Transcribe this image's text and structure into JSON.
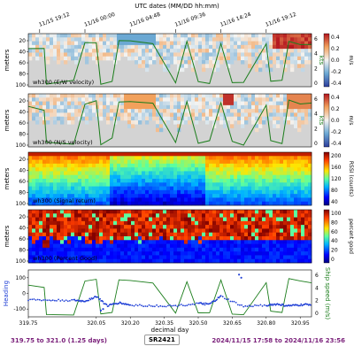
{
  "top_axis": {
    "label": "UTC dates (MM/DD hh:mm)",
    "ticks": [
      {
        "label": "11/15 19:12",
        "day": 319.8
      },
      {
        "label": "11/16 00:00",
        "day": 320.0
      },
      {
        "label": "11/16 04:48",
        "day": 320.2
      },
      {
        "label": "11/16 09:36",
        "day": 320.4
      },
      {
        "label": "11/16 14:24",
        "day": 320.6
      },
      {
        "label": "11/16 19:12",
        "day": 320.8
      }
    ]
  },
  "panels": [
    {
      "id": "uvel",
      "title": "wh300 (E/W velocity)",
      "ylabel": "meters",
      "right_ylabel": "m/s",
      "colormap": "diverging",
      "cbar_ticks": [
        "0.4",
        "0.2",
        "0.0",
        "-0.2",
        "-0.4"
      ],
      "yticks": [
        "20",
        "40",
        "60",
        "80",
        "100"
      ],
      "has_speed_line": true,
      "speed_ticks": [
        "6",
        "4",
        "2",
        "0"
      ],
      "speed_unit": "kts"
    },
    {
      "id": "vvel",
      "title": "wh300 (N/S velocity)",
      "ylabel": "meters",
      "right_ylabel": "m/s",
      "colormap": "diverging",
      "cbar_ticks": [
        "0.4",
        "0.2",
        "0.0",
        "-0.2",
        "-0.4"
      ],
      "yticks": [
        "20",
        "40",
        "60",
        "80",
        "100"
      ],
      "has_speed_line": true,
      "speed_ticks": [
        "6",
        "4",
        "2",
        "0"
      ],
      "speed_unit": "kts"
    },
    {
      "id": "amp",
      "title": "wh300 (Signal return)",
      "ylabel": "meters",
      "right_ylabel": "RSSI (counts)",
      "colormap": "jet",
      "cbar_ticks": [
        "200",
        "160",
        "120",
        "80",
        "40"
      ],
      "yticks": [
        "20",
        "40",
        "60",
        "80",
        "100"
      ],
      "has_speed_line": false
    },
    {
      "id": "pg",
      "title": "wh300 (Percent Good)",
      "ylabel": "meters",
      "right_ylabel": "percent good",
      "colormap": "jet",
      "cbar_ticks": [
        "100",
        "80",
        "60",
        "40",
        "20",
        "0"
      ],
      "yticks": [
        "20",
        "40",
        "60",
        "80",
        "100"
      ],
      "has_speed_line": false
    }
  ],
  "bottom_panel": {
    "left_ylabel": "Heading",
    "right_ylabel": "Ship speed (m/s)",
    "left_ticks": [
      "100",
      "0",
      "-100"
    ],
    "right_ticks": [
      "6",
      "4",
      "2",
      "0"
    ],
    "xlabel": "decimal day",
    "xticks": [
      "319.75",
      "320.05",
      "320.20",
      "320.35",
      "320.50",
      "320.65",
      "320.80",
      "320.95"
    ]
  },
  "chart_data": {
    "type": "heatmap",
    "x_range": [
      319.75,
      321.0
    ],
    "xlabel": "decimal day",
    "depth_range_m": [
      10,
      100
    ],
    "heading_series": {
      "name": "Heading",
      "x": [
        319.75,
        319.85,
        319.95,
        320.0,
        320.05,
        320.1,
        320.15,
        320.2,
        320.3,
        320.4,
        320.5,
        320.55,
        320.6,
        320.7,
        320.8,
        320.85,
        320.9,
        320.95,
        321.0
      ],
      "values": [
        -40,
        -45,
        -45,
        -50,
        -20,
        -80,
        -60,
        -75,
        -80,
        -80,
        -65,
        -70,
        -20,
        -85,
        -75,
        -70,
        -80,
        -75,
        -70
      ]
    },
    "speed_series": {
      "name": "Ship speed (m/s)",
      "x": [
        319.75,
        319.82,
        319.83,
        319.95,
        320.0,
        320.05,
        320.07,
        320.12,
        320.15,
        320.2,
        320.3,
        320.4,
        320.45,
        320.5,
        320.55,
        320.6,
        320.65,
        320.7,
        320.8,
        320.82,
        320.87,
        320.9,
        320.95,
        321.0
      ],
      "values": [
        4.5,
        4.2,
        0.3,
        0.5,
        4.8,
        5.0,
        0.5,
        0.8,
        5.0,
        5.0,
        4.7,
        0.5,
        5.0,
        0.6,
        0.5,
        5.0,
        0.5,
        0.3,
        4.8,
        0.8,
        0.6,
        5.2,
        5.0,
        4.9
      ]
    }
  },
  "footer": {
    "left": "319.75 to 321.0 (1.25 days)",
    "center": "SR2421",
    "right": "2024/11/15 17:58 to 2024/11/16 23:56"
  }
}
